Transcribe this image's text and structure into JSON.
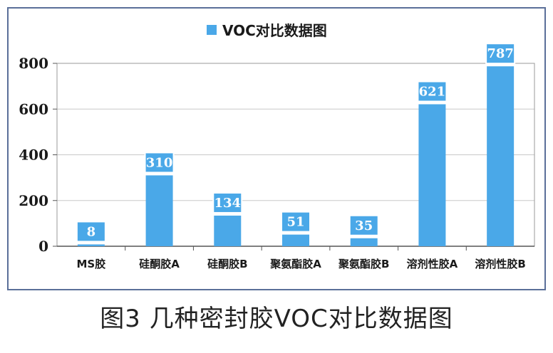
{
  "caption": "图3 几种密封胶VOC对比数据图",
  "colors": {
    "bar": "#4aa8e8",
    "frame": "#5a6f99",
    "grid": "#c8c8c8"
  },
  "chart_data": {
    "type": "bar",
    "title": "",
    "xlabel": "",
    "ylabel": "",
    "categories": [
      "MS胶",
      "硅酮胶A",
      "硅酮胶B",
      "聚氨酯胶A",
      "聚氨酯胶B",
      "溶剂性胶A",
      "溶剂性胶B"
    ],
    "series": [
      {
        "name": "VOC对比数据图",
        "values": [
          8,
          310,
          134,
          51,
          35,
          621,
          787
        ]
      }
    ],
    "ylim": [
      0,
      800
    ],
    "yticks": [
      0,
      200,
      400,
      600,
      800
    ],
    "grid": true,
    "legend": "top-center",
    "data_labels": true
  }
}
